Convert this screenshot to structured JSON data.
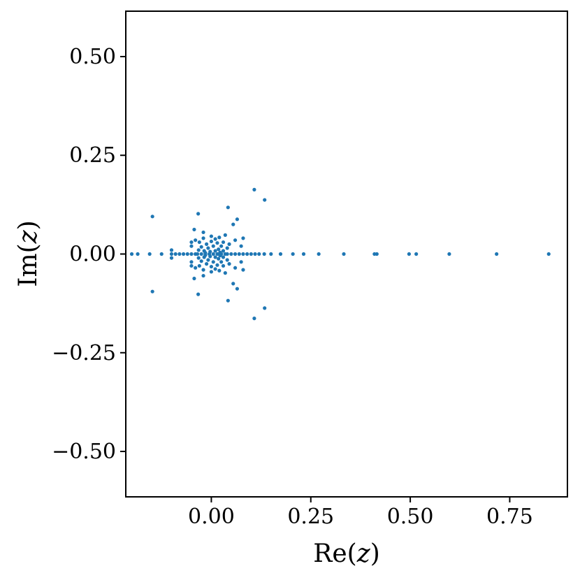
{
  "chart_data": {
    "type": "scatter",
    "xlabel": "Re(z)",
    "ylabel": "Im(z)",
    "xlim": [
      -0.215,
      0.895
    ],
    "ylim": [
      -0.615,
      0.615
    ],
    "xticks": [
      0.0,
      0.25,
      0.5,
      0.75
    ],
    "xtick_labels": [
      "0.00",
      "0.25",
      "0.50",
      "0.75"
    ],
    "yticks": [
      -0.5,
      -0.25,
      0.0,
      0.25,
      0.5
    ],
    "ytick_labels": [
      "−0.50",
      "−0.25",
      "0.00",
      "0.25",
      "0.50"
    ],
    "grid": false,
    "marker_color": "#1f77b4",
    "series": [
      {
        "points": [
          [
            0.848,
            0.0
          ],
          [
            0.717,
            0.0
          ],
          [
            0.598,
            0.0
          ],
          [
            0.515,
            0.0
          ],
          [
            0.497,
            0.0
          ],
          [
            0.416,
            0.0
          ],
          [
            0.41,
            0.0
          ],
          [
            0.333,
            0.0
          ],
          [
            0.27,
            0.0
          ],
          [
            0.232,
            0.0
          ],
          [
            0.205,
            0.0
          ],
          [
            0.174,
            0.0
          ],
          [
            0.15,
            0.0
          ],
          [
            0.133,
            0.0
          ],
          [
            0.12,
            0.0
          ],
          [
            0.11,
            0.0
          ],
          [
            0.1,
            0.0
          ],
          [
            0.09,
            0.0
          ],
          [
            0.08,
            0.0
          ],
          [
            0.07,
            0.0
          ],
          [
            0.06,
            0.0
          ],
          [
            0.05,
            0.0
          ],
          [
            0.04,
            0.0
          ],
          [
            -0.2,
            0.0
          ],
          [
            -0.185,
            0.0
          ],
          [
            -0.155,
            0.0
          ],
          [
            -0.125,
            0.0
          ],
          [
            -0.1,
            0.0
          ],
          [
            -0.09,
            0.0
          ],
          [
            -0.08,
            0.0
          ],
          [
            -0.07,
            0.0
          ],
          [
            -0.06,
            0.0
          ],
          [
            -0.05,
            0.0
          ],
          [
            -0.04,
            0.0
          ],
          [
            -0.1,
            0.01
          ],
          [
            -0.1,
            -0.01
          ],
          [
            0.108,
            0.163
          ],
          [
            0.108,
            -0.163
          ],
          [
            0.134,
            0.137
          ],
          [
            0.134,
            -0.137
          ],
          [
            -0.148,
            0.095
          ],
          [
            -0.148,
            -0.095
          ],
          [
            -0.033,
            0.102
          ],
          [
            -0.033,
            -0.102
          ],
          [
            0.042,
            0.118
          ],
          [
            0.042,
            -0.118
          ],
          [
            0.065,
            0.088
          ],
          [
            0.065,
            -0.088
          ],
          [
            0.055,
            0.075
          ],
          [
            0.055,
            -0.075
          ],
          [
            -0.043,
            0.062
          ],
          [
            -0.043,
            -0.062
          ],
          [
            -0.02,
            0.055
          ],
          [
            -0.02,
            -0.055
          ],
          [
            0.0,
            0.045
          ],
          [
            0.0,
            -0.045
          ],
          [
            0.02,
            0.042
          ],
          [
            0.02,
            -0.042
          ],
          [
            0.035,
            0.048
          ],
          [
            0.035,
            -0.048
          ],
          [
            0.08,
            0.04
          ],
          [
            0.08,
            -0.04
          ],
          [
            0.075,
            0.02
          ],
          [
            0.075,
            -0.02
          ],
          [
            0.06,
            0.035
          ],
          [
            0.06,
            -0.035
          ],
          [
            -0.05,
            0.03
          ],
          [
            -0.05,
            -0.03
          ],
          [
            -0.05,
            0.02
          ],
          [
            -0.05,
            -0.02
          ],
          [
            -0.04,
            0.035
          ],
          [
            -0.04,
            -0.035
          ],
          [
            -0.03,
            0.03
          ],
          [
            -0.03,
            -0.03
          ],
          [
            -0.02,
            0.04
          ],
          [
            -0.02,
            -0.04
          ],
          [
            0.01,
            0.038
          ],
          [
            0.01,
            -0.038
          ],
          [
            0.03,
            0.03
          ],
          [
            0.03,
            -0.03
          ],
          [
            0.045,
            0.025
          ],
          [
            0.045,
            -0.025
          ],
          [
            0.04,
            0.015
          ],
          [
            0.04,
            -0.015
          ],
          [
            0.025,
            0.02
          ],
          [
            0.025,
            -0.02
          ],
          [
            0.015,
            0.028
          ],
          [
            0.015,
            -0.028
          ],
          [
            0.0,
            0.032
          ],
          [
            0.0,
            -0.032
          ],
          [
            -0.012,
            0.025
          ],
          [
            -0.012,
            -0.025
          ],
          [
            -0.025,
            0.018
          ],
          [
            -0.025,
            -0.018
          ],
          [
            -0.032,
            0.01
          ],
          [
            -0.032,
            -0.01
          ],
          [
            -0.018,
            0.008
          ],
          [
            -0.018,
            -0.008
          ],
          [
            -0.008,
            0.015
          ],
          [
            -0.008,
            -0.015
          ],
          [
            0.005,
            0.02
          ],
          [
            0.005,
            -0.02
          ],
          [
            0.018,
            0.012
          ],
          [
            0.018,
            -0.012
          ],
          [
            0.03,
            0.008
          ],
          [
            0.03,
            -0.008
          ],
          [
            0.01,
            0.008
          ],
          [
            0.01,
            -0.008
          ],
          [
            -0.003,
            0.006
          ],
          [
            -0.003,
            -0.006
          ],
          [
            0.022,
            0.004
          ],
          [
            0.022,
            -0.004
          ],
          [
            -0.015,
            0.003
          ],
          [
            -0.015,
            -0.003
          ],
          [
            0.035,
            0.0
          ],
          [
            0.025,
            0.0
          ],
          [
            0.015,
            0.0
          ],
          [
            0.005,
            0.0
          ],
          [
            -0.005,
            0.0
          ],
          [
            -0.015,
            0.0
          ],
          [
            -0.025,
            0.0
          ],
          [
            -0.035,
            0.0
          ]
        ]
      }
    ]
  }
}
